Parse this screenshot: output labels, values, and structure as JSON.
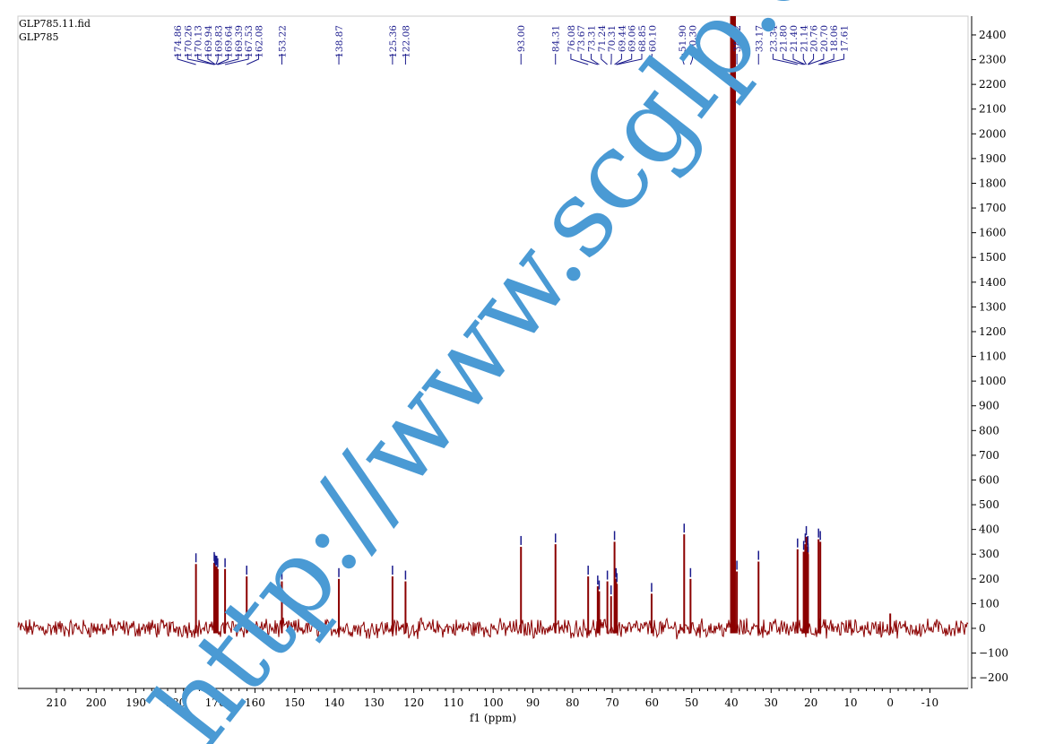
{
  "header": {
    "file_name": "GLP785.11.fid",
    "sample_name": "GLP785"
  },
  "watermark": "http://www.scglp.com/",
  "colors": {
    "spectrum": "#8b0000",
    "peak_label": "#1a1a8c",
    "axis": "#000000",
    "watermark": "#4a9ad4"
  },
  "chart_data": {
    "type": "line",
    "xlabel": "f1 (ppm)",
    "ylabel": "",
    "x_reversed": true,
    "xlim": [
      219.7,
      -19.6
    ],
    "ylim": [
      -243,
      2476
    ],
    "x_ticks": [
      210,
      200,
      190,
      180,
      170,
      160,
      150,
      140,
      130,
      120,
      110,
      100,
      90,
      80,
      70,
      60,
      50,
      40,
      30,
      20,
      10,
      0,
      -10
    ],
    "y_ticks": [
      -200,
      -100,
      0,
      100,
      200,
      300,
      400,
      500,
      600,
      700,
      800,
      900,
      1000,
      1100,
      1200,
      1300,
      1400,
      1500,
      1600,
      1700,
      1800,
      1900,
      2000,
      2100,
      2200,
      2300,
      2400
    ],
    "peaks": [
      {
        "ppm": 174.86,
        "label": "174.86",
        "height": 260
      },
      {
        "ppm": 170.26,
        "label": "170.26",
        "height": 265
      },
      {
        "ppm": 170.13,
        "label": "170.13",
        "height": 255
      },
      {
        "ppm": 169.94,
        "label": "169.94",
        "height": 250
      },
      {
        "ppm": 169.83,
        "label": "169.83",
        "height": 245
      },
      {
        "ppm": 169.64,
        "label": "169.64",
        "height": 250
      },
      {
        "ppm": 169.39,
        "label": "169.39",
        "height": 240
      },
      {
        "ppm": 167.53,
        "label": "167.53",
        "height": 240
      },
      {
        "ppm": 162.08,
        "label": "162.08",
        "height": 210
      },
      {
        "ppm": 153.22,
        "label": "153.22",
        "height": 190
      },
      {
        "ppm": 138.87,
        "label": "138.87",
        "height": 200
      },
      {
        "ppm": 125.36,
        "label": "125.36",
        "height": 210
      },
      {
        "ppm": 122.08,
        "label": "122.08",
        "height": 190
      },
      {
        "ppm": 93.0,
        "label": "93.00",
        "height": 330
      },
      {
        "ppm": 84.31,
        "label": "84.31",
        "height": 340
      },
      {
        "ppm": 76.08,
        "label": "76.08",
        "height": 210
      },
      {
        "ppm": 73.67,
        "label": "73.67",
        "height": 170
      },
      {
        "ppm": 73.31,
        "label": "73.31",
        "height": 150
      },
      {
        "ppm": 71.24,
        "label": "71.24",
        "height": 190
      },
      {
        "ppm": 70.31,
        "label": "70.31",
        "height": 130
      },
      {
        "ppm": 69.44,
        "label": "69.44",
        "height": 350
      },
      {
        "ppm": 69.06,
        "label": "69.06",
        "height": 200
      },
      {
        "ppm": 68.85,
        "label": "68.85",
        "height": 180
      },
      {
        "ppm": 60.1,
        "label": "60.10",
        "height": 140
      },
      {
        "ppm": 51.9,
        "label": "51.90",
        "height": 380
      },
      {
        "ppm": 50.3,
        "label": "50.30",
        "height": 200
      },
      {
        "ppm": 38.62,
        "label": "38.62",
        "height": 230
      },
      {
        "ppm": 33.17,
        "label": "33.17",
        "height": 270
      },
      {
        "ppm": 23.34,
        "label": "23.34",
        "height": 320
      },
      {
        "ppm": 21.8,
        "label": "21.80",
        "height": 310
      },
      {
        "ppm": 21.4,
        "label": "21.40",
        "height": 340
      },
      {
        "ppm": 21.14,
        "label": "21.14",
        "height": 370
      },
      {
        "ppm": 20.76,
        "label": "20.76",
        "height": 330
      },
      {
        "ppm": 20.7,
        "label": "20.70",
        "height": 300
      },
      {
        "ppm": 18.06,
        "label": "18.06",
        "height": 360
      },
      {
        "ppm": 17.61,
        "label": "17.61",
        "height": 350
      }
    ],
    "unlabeled_peaks": [
      {
        "ppm": 40.1,
        "height": 2476
      },
      {
        "ppm": 39.9,
        "height": 2476
      },
      {
        "ppm": 39.7,
        "height": 2476
      },
      {
        "ppm": 39.5,
        "height": 2476
      },
      {
        "ppm": 39.3,
        "height": 2476
      },
      {
        "ppm": 39.1,
        "height": 2476
      },
      {
        "ppm": 0.0,
        "height": 60
      }
    ]
  }
}
